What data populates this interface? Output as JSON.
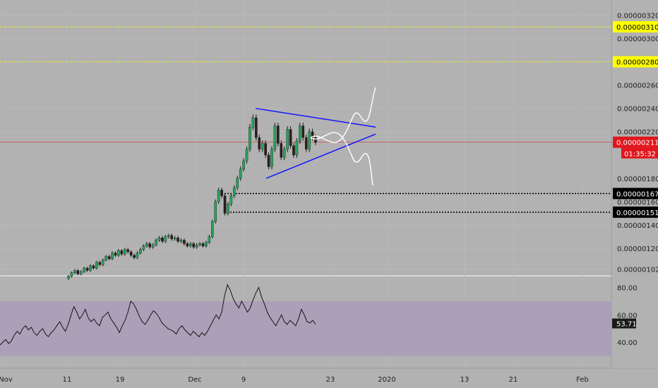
{
  "chart_data": [
    {
      "type": "candlestick",
      "price_axis_labels": [
        "0.00000320",
        "0.00000300",
        "0.00000260",
        "0.00000240",
        "0.00000220",
        "0.00000180",
        "0.00000160",
        "0.00000140",
        "0.00000120",
        "0.00000102"
      ],
      "ylim": [
        9.7e-07,
        3.33e-06
      ],
      "x_axis_labels": [
        "Nov",
        "11",
        "19",
        "Dec",
        "9",
        "23",
        "2020",
        "13",
        "21",
        "Feb"
      ],
      "price_tags": [
        {
          "value": 3.1e-06,
          "label": "0.00000310",
          "bg": "#ffff00",
          "fg": "#000000"
        },
        {
          "value": 2.8e-06,
          "label": "0.00000280",
          "bg": "#ffff00",
          "fg": "#000000"
        },
        {
          "value": 2.11e-06,
          "label": "0.00000211",
          "bg": "#e0161c",
          "fg": "#ffffff"
        },
        {
          "value": 1.67e-06,
          "label": "0.00000167",
          "bg": "#000000",
          "fg": "#ffffff"
        },
        {
          "value": 1.51e-06,
          "label": "0.00000151",
          "bg": "#000000",
          "fg": "#ffffff"
        }
      ],
      "countdown": "01:35:32",
      "horizontal_levels": [
        {
          "value": 3.1e-06,
          "style": "yellow-dotted"
        },
        {
          "value": 2.8e-06,
          "style": "yellow-dotted"
        },
        {
          "value": 1.67e-06,
          "style": "black-dotted"
        },
        {
          "value": 1.51e-06,
          "style": "black-dotted"
        }
      ],
      "candles_close": [
        9.6e-07,
        9.9e-07,
        1.01e-06,
        9.8e-07,
        1e-06,
        1.03e-06,
        1.01e-06,
        1.05e-06,
        1.03e-06,
        1.08e-06,
        1.06e-06,
        1.1e-06,
        1.13e-06,
        1.11e-06,
        1.16e-06,
        1.14e-06,
        1.18e-06,
        1.15e-06,
        1.19e-06,
        1.17e-06,
        1.14e-06,
        1.12e-06,
        1.16e-06,
        1.19e-06,
        1.22e-06,
        1.24e-06,
        1.21e-06,
        1.23e-06,
        1.27e-06,
        1.29e-06,
        1.26e-06,
        1.3e-06,
        1.31e-06,
        1.28e-06,
        1.29e-06,
        1.26e-06,
        1.27e-06,
        1.24e-06,
        1.22e-06,
        1.24e-06,
        1.21e-06,
        1.23e-06,
        1.24e-06,
        1.22e-06,
        1.25e-06,
        1.3e-06,
        1.43e-06,
        1.6e-06,
        1.7e-06,
        1.65e-06,
        1.5e-06,
        1.58e-06,
        1.65e-06,
        1.72e-06,
        1.8e-06,
        1.88e-06,
        1.95e-06,
        2.05e-06,
        2.24e-06,
        2.32e-06,
        2.15e-06,
        2.05e-06,
        2.1e-06,
        2e-06,
        1.9e-06,
        2.05e-06,
        2.25e-06,
        2.1e-06,
        1.98e-06,
        2.05e-06,
        2.22e-06,
        2.08e-06,
        2e-06,
        2.12e-06,
        2.25e-06,
        2.15e-06,
        2.05e-06,
        2.2e-06,
        2.15e-06,
        2.11e-06
      ],
      "wedge_upper": [
        [
          2.4e-06,
          0
        ],
        [
          2.24e-06,
          1
        ]
      ],
      "wedge_lower": [
        [
          1.8e-06,
          0
        ],
        [
          2.18e-06,
          1
        ]
      ],
      "projection_up": [
        2.15e-06,
        2.32e-06,
        2.58e-06
      ],
      "projection_down": [
        2.15e-06,
        1.98e-06,
        1.74e-06
      ]
    },
    {
      "type": "line",
      "indicator": "RSI",
      "axis_labels": [
        "80.00",
        "60.00",
        "40.00"
      ],
      "ylim": [
        22,
        88
      ],
      "band": [
        30,
        70
      ],
      "current_value": "53.71",
      "values": [
        38,
        40,
        42,
        39,
        41,
        45,
        48,
        46,
        50,
        52,
        49,
        51,
        47,
        45,
        48,
        50,
        46,
        44,
        47,
        49,
        52,
        55,
        51,
        48,
        53,
        60,
        66,
        62,
        57,
        60,
        64,
        58,
        55,
        57,
        54,
        52,
        58,
        60,
        62,
        57,
        54,
        51,
        47,
        52,
        56,
        62,
        70,
        68,
        64,
        59,
        55,
        53,
        56,
        60,
        63,
        61,
        58,
        54,
        52,
        50,
        49,
        48,
        46,
        50,
        52,
        49,
        47,
        45,
        48,
        46,
        44,
        47,
        45,
        48,
        52,
        56,
        60,
        57,
        62,
        74,
        82,
        78,
        72,
        68,
        65,
        70,
        66,
        62,
        65,
        71,
        76,
        80,
        73,
        68,
        62,
        58,
        55,
        52,
        56,
        60,
        55,
        53,
        56,
        54,
        52,
        57,
        64,
        60,
        55,
        54,
        56,
        53
      ]
    }
  ]
}
